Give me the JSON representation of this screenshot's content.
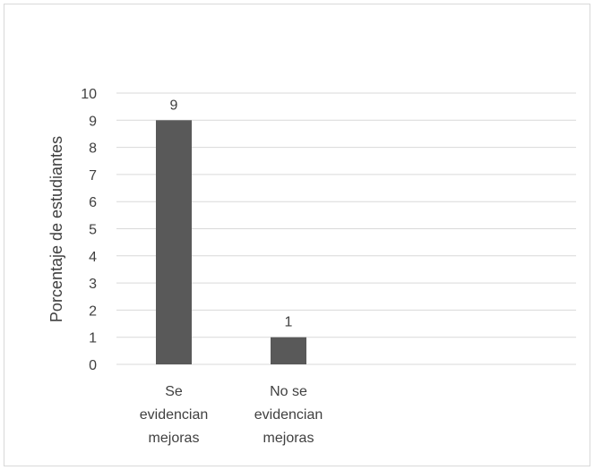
{
  "chart_data": {
    "type": "bar",
    "title": "",
    "xlabel": "",
    "ylabel": "Porcentaje  de estudiantes",
    "categories": [
      [
        "Se",
        "evidencian",
        "mejoras"
      ],
      [
        "No se",
        "evidencian",
        "mejoras"
      ]
    ],
    "values": [
      9,
      1
    ],
    "data_labels": [
      "9",
      "1"
    ],
    "ylim": [
      0,
      10
    ],
    "yticks": [
      "0",
      "1",
      "2",
      "3",
      "4",
      "5",
      "6",
      "7",
      "8",
      "9",
      "10"
    ],
    "grid": true,
    "legend": "none",
    "colors": {
      "bar": "#595959",
      "grid": "#d9d9d9",
      "text": "#404040"
    }
  }
}
